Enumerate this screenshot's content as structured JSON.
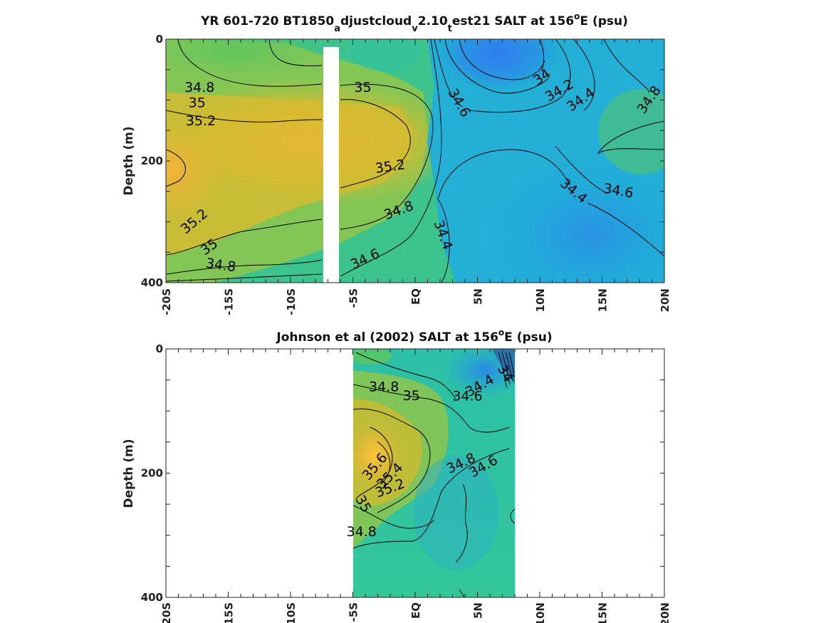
{
  "chart_data": [
    {
      "type": "heatmap",
      "title_parts": {
        "t1": "YR 601-720 BT1850",
        "s1": "a",
        "t2": "djustcloud",
        "s2": "v",
        "t3": "2.10",
        "s3": "t",
        "t4": "est21 SALT at 156",
        "sup": "o",
        "t5": "E (psu)"
      },
      "ylabel": "Depth (m)",
      "x_ticks": [
        "-20S",
        "-15S",
        "-10S",
        "-5S",
        "EQ",
        "5N",
        "10N",
        "15N",
        "20N"
      ],
      "x_range": [
        -20,
        20
      ],
      "y_ticks": [
        "0",
        "200",
        "400"
      ],
      "y_range": [
        0,
        400
      ],
      "contour_labels": [
        {
          "text": "34.8",
          "lat": -17.3,
          "depth": 80
        },
        {
          "text": "35",
          "lat": -17.5,
          "depth": 105
        },
        {
          "text": "35.2",
          "lat": -17.2,
          "depth": 135
        },
        {
          "text": "35",
          "lat": -4.2,
          "depth": 80
        },
        {
          "text": "34.6",
          "lat": 3.5,
          "depth": 105,
          "rot": 60
        },
        {
          "text": "34",
          "lat": 10.2,
          "depth": 63,
          "rot": -35
        },
        {
          "text": "34.2",
          "lat": 11.6,
          "depth": 85,
          "rot": -30
        },
        {
          "text": "34.4",
          "lat": 13.3,
          "depth": 100,
          "rot": -35
        },
        {
          "text": "34.8",
          "lat": 18.8,
          "depth": 100,
          "rot": -55
        },
        {
          "text": "35.2",
          "lat": -2.0,
          "depth": 210,
          "rot": -8
        },
        {
          "text": "34.4",
          "lat": 12.7,
          "depth": 250,
          "rot": 40
        },
        {
          "text": "34.6",
          "lat": 16.3,
          "depth": 250,
          "rot": 10
        },
        {
          "text": "35.2",
          "lat": -17.7,
          "depth": 300,
          "rot": -40
        },
        {
          "text": "35",
          "lat": -16.5,
          "depth": 342,
          "rot": -35
        },
        {
          "text": "34.8",
          "lat": -1.3,
          "depth": 282,
          "rot": -20
        },
        {
          "text": "34.4",
          "lat": 2.2,
          "depth": 322,
          "rot": 70
        },
        {
          "text": "34.8",
          "lat": -15.6,
          "depth": 372,
          "rot": 8
        },
        {
          "text": "34.6",
          "lat": -4.0,
          "depth": 362,
          "rot": -25
        }
      ]
    },
    {
      "type": "heatmap",
      "title_parts": {
        "t1": "Johnson et al (2002) SALT at 156",
        "sup": "o",
        "t2": "E (psu)"
      },
      "ylabel": "Depth (m)",
      "x_ticks": [
        "-20S",
        "-15S",
        "-10S",
        "-5S",
        "EQ",
        "5N",
        "10N",
        "15N",
        "20N"
      ],
      "x_range": [
        -20,
        20
      ],
      "y_ticks": [
        "0",
        "200",
        "400"
      ],
      "y_range": [
        0,
        400
      ],
      "data_lat_range": [
        -5,
        8
      ],
      "contour_labels": [
        {
          "text": "34.8",
          "lat": -2.5,
          "depth": 62
        },
        {
          "text": "35",
          "lat": -0.3,
          "depth": 76
        },
        {
          "text": "34.4",
          "lat": 5.2,
          "depth": 60,
          "rot": -30
        },
        {
          "text": "34.6",
          "lat": 4.2,
          "depth": 77
        },
        {
          "text": "34",
          "lat": 7.2,
          "depth": 40,
          "rot": 60
        },
        {
          "text": "35.6",
          "lat": -3.2,
          "depth": 190,
          "rot": -50
        },
        {
          "text": "35.4",
          "lat": -2.0,
          "depth": 205,
          "rot": -45
        },
        {
          "text": "35.2",
          "lat": -2.0,
          "depth": 225,
          "rot": -20
        },
        {
          "text": "35",
          "lat": -4.2,
          "depth": 250,
          "rot": 60
        },
        {
          "text": "34.8",
          "lat": 3.7,
          "depth": 185,
          "rot": -25
        },
        {
          "text": "34.6",
          "lat": 5.5,
          "depth": 190,
          "rot": -30
        },
        {
          "text": "34.8",
          "lat": -4.3,
          "depth": 295
        }
      ]
    }
  ]
}
